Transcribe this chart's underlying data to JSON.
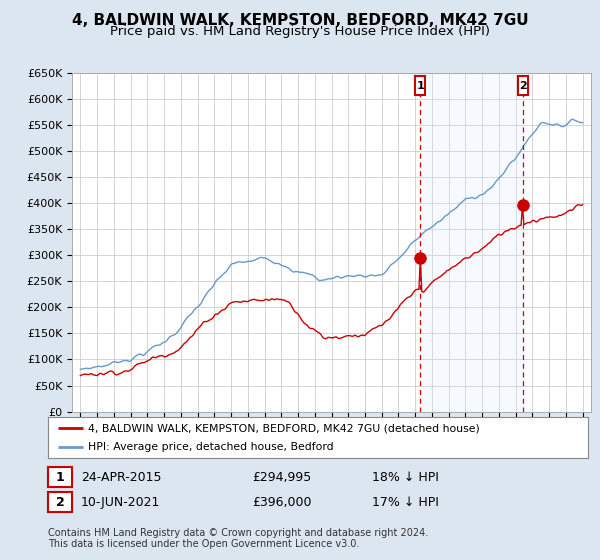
{
  "title": "4, BALDWIN WALK, KEMPSTON, BEDFORD, MK42 7GU",
  "subtitle": "Price paid vs. HM Land Registry's House Price Index (HPI)",
  "ylim": [
    0,
    650000
  ],
  "yticks": [
    0,
    50000,
    100000,
    150000,
    200000,
    250000,
    300000,
    350000,
    400000,
    450000,
    500000,
    550000,
    600000,
    650000
  ],
  "ytick_labels": [
    "£0",
    "£50K",
    "£100K",
    "£150K",
    "£200K",
    "£250K",
    "£300K",
    "£350K",
    "£400K",
    "£450K",
    "£500K",
    "£550K",
    "£600K",
    "£650K"
  ],
  "line1_color": "#cc0000",
  "line2_color": "#6699cc",
  "vline_color": "#cc0000",
  "fill_color": "#ddeeff",
  "marker1_date": 2015.31,
  "marker2_date": 2021.44,
  "marker1_value": 294995,
  "marker2_value": 396000,
  "transaction1": {
    "label": "1",
    "date": "24-APR-2015",
    "price": "£294,995",
    "hpi": "18% ↓ HPI"
  },
  "transaction2": {
    "label": "2",
    "date": "10-JUN-2021",
    "price": "£396,000",
    "hpi": "17% ↓ HPI"
  },
  "legend1": "4, BALDWIN WALK, KEMPSTON, BEDFORD, MK42 7GU (detached house)",
  "legend2": "HPI: Average price, detached house, Bedford",
  "footer": "Contains HM Land Registry data © Crown copyright and database right 2024.\nThis data is licensed under the Open Government Licence v3.0.",
  "background_color": "#dce6f1",
  "plot_bg_color": "#ffffff",
  "grid_color": "#cccccc",
  "title_fontsize": 11,
  "subtitle_fontsize": 9.5,
  "xmin": 1994.5,
  "xmax": 2025.5
}
